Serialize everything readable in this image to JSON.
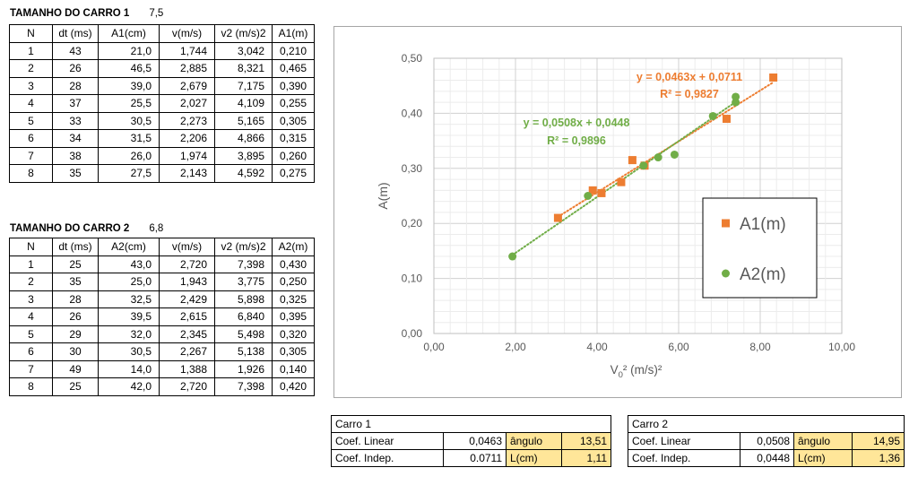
{
  "car1": {
    "title": "TAMANHO DO CARRO 1",
    "size": "7,5",
    "headers": [
      "N",
      "dt (ms)",
      "A1(cm)",
      "v(m/s)",
      "v2 (m/s)2",
      "A1(m)"
    ],
    "rows": [
      [
        "1",
        "43",
        "21,0",
        "1,744",
        "3,042",
        "0,210"
      ],
      [
        "2",
        "26",
        "46,5",
        "2,885",
        "8,321",
        "0,465"
      ],
      [
        "3",
        "28",
        "39,0",
        "2,679",
        "7,175",
        "0,390"
      ],
      [
        "4",
        "37",
        "25,5",
        "2,027",
        "4,109",
        "0,255"
      ],
      [
        "5",
        "33",
        "30,5",
        "2,273",
        "5,165",
        "0,305"
      ],
      [
        "6",
        "34",
        "31,5",
        "2,206",
        "4,866",
        "0,315"
      ],
      [
        "7",
        "38",
        "26,0",
        "1,974",
        "3,895",
        "0,260"
      ],
      [
        "8",
        "35",
        "27,5",
        "2,143",
        "4,592",
        "0,275"
      ]
    ]
  },
  "car2": {
    "title": "TAMANHO DO CARRO 2",
    "size": "6,8",
    "headers": [
      "N",
      "dt (ms)",
      "A2(cm)",
      "v(m/s)",
      "v2 (m/s)2",
      "A2(m)"
    ],
    "rows": [
      [
        "1",
        "25",
        "43,0",
        "2,720",
        "7,398",
        "0,430"
      ],
      [
        "2",
        "35",
        "25,0",
        "1,943",
        "3,775",
        "0,250"
      ],
      [
        "3",
        "28",
        "32,5",
        "2,429",
        "5,898",
        "0,325"
      ],
      [
        "4",
        "26",
        "39,5",
        "2,615",
        "6,840",
        "0,395"
      ],
      [
        "5",
        "29",
        "32,0",
        "2,345",
        "5,498",
        "0,320"
      ],
      [
        "6",
        "30",
        "30,5",
        "2,267",
        "5,138",
        "0,305"
      ],
      [
        "7",
        "49",
        "14,0",
        "1,388",
        "1,926",
        "0,140"
      ],
      [
        "8",
        "25",
        "42,0",
        "2,720",
        "7,398",
        "0,420"
      ]
    ]
  },
  "coef1": {
    "title": "Carro 1",
    "linear_label": "Coef. Linear",
    "linear_value": "0,0463",
    "angle_label": "ângulo",
    "angle_value": "13,51",
    "indep_label": "Coef. Indep.",
    "indep_value": "0.0711",
    "length_label": "L(cm)",
    "length_value": "1,11"
  },
  "coef2": {
    "title": "Carro 2",
    "linear_label": "Coef. Linear",
    "linear_value": "0,0508",
    "angle_label": "ângulo",
    "angle_value": "14,95",
    "indep_label": "Coef. Indep.",
    "indep_value": "0,0448",
    "length_label": "L(cm)",
    "length_value": "1,36"
  },
  "colors": {
    "series1": "#ed7d31",
    "series2": "#70ad47",
    "highlight": "#ffe699"
  },
  "chart_data": {
    "type": "scatter",
    "xlabel": "V0² (m/s)²",
    "ylabel": "A(m)",
    "xlim": [
      0,
      10
    ],
    "ylim": [
      0,
      0.5
    ],
    "x_ticks": [
      "0,00",
      "2,00",
      "4,00",
      "6,00",
      "8,00",
      "10,00"
    ],
    "y_ticks": [
      "0,00",
      "0,10",
      "0,20",
      "0,30",
      "0,40",
      "0,50"
    ],
    "grid": true,
    "legend_position": "right",
    "series": [
      {
        "name": "A1(m)",
        "marker": "square",
        "color": "#ed7d31",
        "x": [
          3.042,
          8.321,
          7.175,
          4.109,
          5.165,
          4.866,
          3.895,
          4.592
        ],
        "y": [
          0.21,
          0.465,
          0.39,
          0.255,
          0.305,
          0.315,
          0.26,
          0.275
        ],
        "trendline": {
          "slope": 0.0463,
          "intercept": 0.0711,
          "equation": "y = 0,0463x + 0,0711",
          "r2": "R² = 0,9827"
        }
      },
      {
        "name": "A2(m)",
        "marker": "circle",
        "color": "#70ad47",
        "x": [
          7.398,
          3.775,
          5.898,
          6.84,
          5.498,
          5.138,
          1.926,
          7.398
        ],
        "y": [
          0.43,
          0.25,
          0.325,
          0.395,
          0.32,
          0.305,
          0.14,
          0.42
        ],
        "trendline": {
          "slope": 0.0508,
          "intercept": 0.0448,
          "equation": "y = 0,0508x + 0,0448",
          "r2": "R² = 0,9896"
        }
      }
    ]
  }
}
